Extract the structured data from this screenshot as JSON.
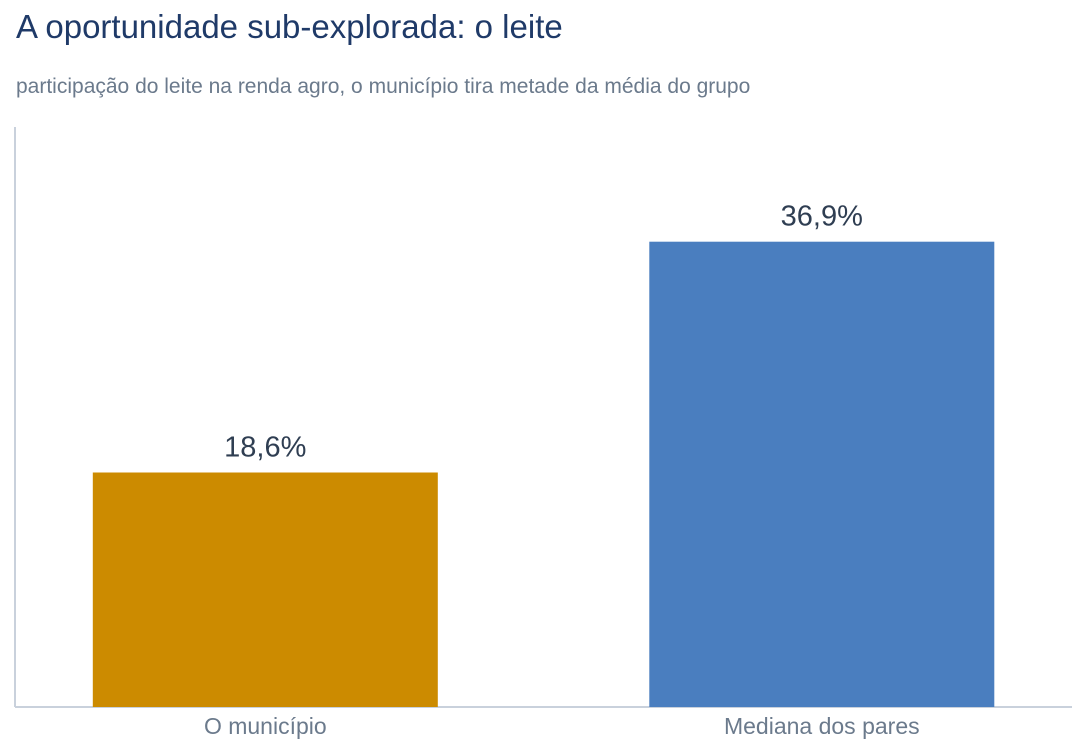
{
  "title": "A oportunidade sub-explorada: o leite",
  "subtitle": "participação do leite na renda agro, o município tira metade da média do grupo",
  "chart_data": {
    "type": "bar",
    "categories": [
      "O município",
      "Mediana dos pares"
    ],
    "values": [
      18.6,
      36.9
    ],
    "value_labels": [
      "18,6%",
      "36,9%"
    ],
    "colors": [
      "#cc8b00",
      "#4a7ebf"
    ],
    "ylim": [
      0,
      46
    ],
    "xlabel": "",
    "ylabel": "",
    "grid": false,
    "legend": "none"
  }
}
